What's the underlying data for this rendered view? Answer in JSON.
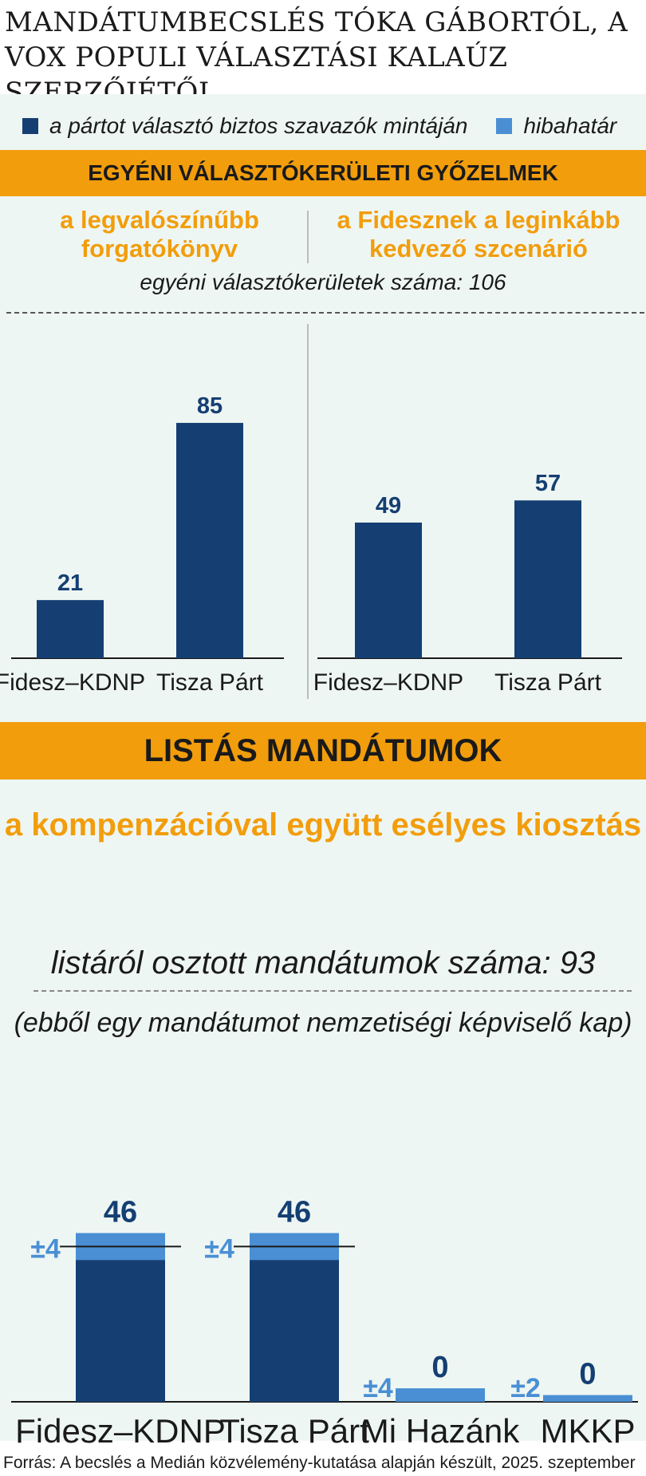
{
  "title": "MANDÁTUMBECSLÉS TÓKA GÁBORTÓL, A VOX POPULI VÁLASZTÁSI KALAÚZ SZERZŐJÉTŐL",
  "legend": [
    {
      "label": "a pártot választó biztos szavazók mintáján",
      "color": "#153f73"
    },
    {
      "label": "hibahatár",
      "color": "#4a8fd4"
    }
  ],
  "colors": {
    "bar": "#153f73",
    "error": "#4a8fd4",
    "band": "#f29d0c",
    "panel": "#eef6f3"
  },
  "section1": {
    "band_title": "EGYÉNI VÁLASZTÓKERÜLETI GYŐZELMEK",
    "left_subtitle": "a legvalószínűbb forgatókönyv",
    "right_subtitle": "a Fidesznek a leginkább kedvező szcenárió",
    "note": "egyéni választókerületek száma: 106"
  },
  "section2": {
    "band_title": "LISTÁS MANDÁTUMOK",
    "subtitle": "a kompenzációval együtt esélyes kiosztás",
    "note": "listáról osztott mandátumok száma: 93",
    "note2": "(ebből egy mandátumot nemzetiségi képviselő kap)"
  },
  "chart_data": [
    {
      "type": "bar",
      "title": "a legvalószínűbb forgatókönyv",
      "categories": [
        "Fidesz–KDNP",
        "Tisza Párt"
      ],
      "values": [
        21,
        85
      ],
      "ylim": [
        0,
        106
      ],
      "grid": false
    },
    {
      "type": "bar",
      "title": "a Fidesznek a leginkább kedvező szcenárió",
      "categories": [
        "Fidesz–KDNP",
        "Tisza Párt"
      ],
      "values": [
        49,
        57
      ],
      "ylim": [
        0,
        106
      ],
      "grid": false
    },
    {
      "type": "bar",
      "title": "a kompenzációval együtt esélyes kiosztás",
      "categories": [
        "Fidesz–KDNP",
        "Tisza Párt",
        "Mi Hazánk",
        "MKKP"
      ],
      "values": [
        46,
        46,
        0,
        0
      ],
      "error": [
        4,
        4,
        4,
        2
      ],
      "error_labels": [
        "±4",
        "±4",
        "±4",
        "±2"
      ],
      "grid": false
    }
  ],
  "source": "Forrás: A becslés a Medián közvélemény-kutatása alapján készült, 2025. szeptember"
}
